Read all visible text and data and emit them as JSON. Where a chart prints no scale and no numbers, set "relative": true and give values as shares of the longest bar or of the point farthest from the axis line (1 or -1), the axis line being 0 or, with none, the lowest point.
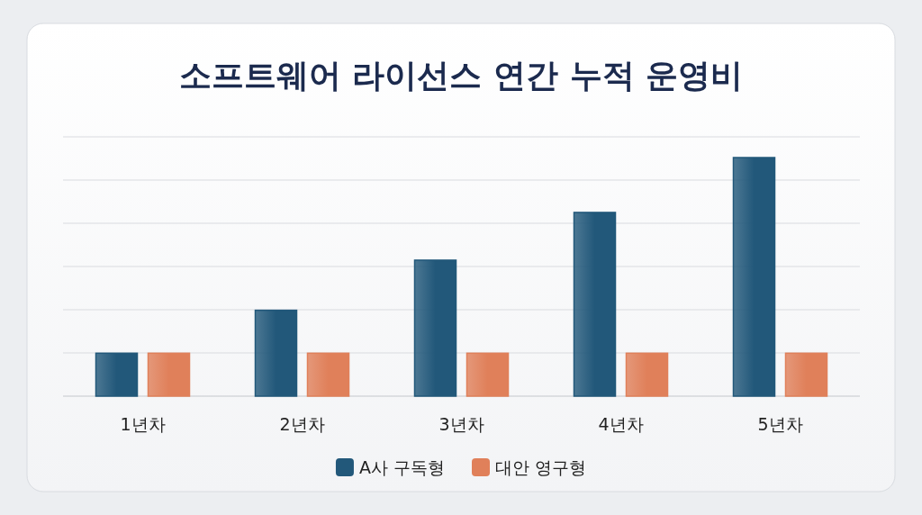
{
  "chart_data": {
    "type": "bar",
    "title": "소프트웨어 라이선스 연간 누적 운영비",
    "categories": [
      "1년차",
      "2년차",
      "3년차",
      "4년차",
      "5년차"
    ],
    "relative": true,
    "grid": "y",
    "legend": "bottom",
    "series": [
      {
        "name": "A사 구독형",
        "color": "#22587a",
        "values": [
          0.18,
          0.36,
          0.57,
          0.77,
          1
        ]
      },
      {
        "name": "대안 영구형",
        "color": "#e0805a",
        "values": [
          0.18,
          0.18,
          0.18,
          0.18,
          0.18
        ]
      }
    ]
  }
}
